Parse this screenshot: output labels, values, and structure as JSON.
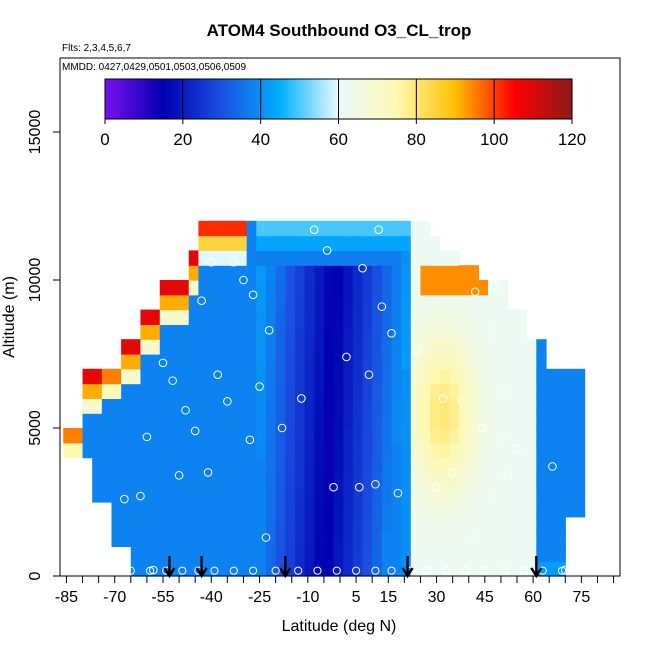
{
  "chart_data": {
    "type": "heatmap",
    "title": "ATOM4 Southbound O3_CL_trop",
    "subtitle_lines": [
      "Flts: 2,3,4,5,6,7",
      "MMDD: 0427,0429,0501,0503,0506,0509"
    ],
    "xlabel": "Latitude (deg N)",
    "ylabel": "Altitude (m)",
    "xlim": [
      -87,
      87
    ],
    "ylim": [
      0,
      17500
    ],
    "x_ticks": [
      -85,
      -70,
      -55,
      -40,
      -25,
      -10,
      5,
      15,
      30,
      45,
      60,
      75
    ],
    "y_ticks": [
      0,
      5000,
      10000,
      15000
    ],
    "x_minor_step": 5,
    "colorbar": {
      "range": [
        0,
        120
      ],
      "ticks": [
        0,
        20,
        40,
        60,
        80,
        100,
        120
      ],
      "colors": [
        "#7a10f0",
        "#0000b0",
        "#1a50e0",
        "#00b0ff",
        "#eafaff",
        "#fff9b0",
        "#ffc000",
        "#ff0000",
        "#8b1a1a"
      ]
    },
    "altitude_bins_m": [
      0,
      500,
      1000,
      1500,
      2000,
      2500,
      3000,
      3500,
      4000,
      4500,
      5000,
      5500,
      6000,
      6500,
      7000,
      7500,
      8000,
      8500,
      9000,
      9500,
      10000,
      10500,
      11000,
      11500,
      12000
    ],
    "latitude_bins_deg": [
      -86,
      -83,
      -80,
      -77,
      -74,
      -71,
      -68,
      -65,
      -62,
      -59,
      -56,
      -53,
      -50,
      -47,
      -44,
      -41,
      -38,
      -35,
      -32,
      -29,
      -26,
      -23,
      -20,
      -17,
      -14,
      -11,
      -8,
      -5,
      -2,
      1,
      4,
      7,
      10,
      13,
      16,
      19,
      22,
      25,
      28,
      31,
      34,
      37,
      40,
      43,
      46,
      49,
      52,
      55,
      58,
      61,
      64,
      67,
      70,
      73
    ],
    "profile_markers": [
      {
        "lat": -70,
        "alt": 300
      },
      {
        "lat": -67,
        "alt": 2600
      },
      {
        "lat": -62,
        "alt": 2700
      },
      {
        "lat": -60,
        "alt": 4700
      },
      {
        "lat": -58,
        "alt": 200
      },
      {
        "lat": -55,
        "alt": 7200
      },
      {
        "lat": -52,
        "alt": 6600
      },
      {
        "lat": -50,
        "alt": 3400
      },
      {
        "lat": -48,
        "alt": 5600
      },
      {
        "lat": -45,
        "alt": 4900
      },
      {
        "lat": -43,
        "alt": 9300
      },
      {
        "lat": -41,
        "alt": 3500
      },
      {
        "lat": -40,
        "alt": 10600
      },
      {
        "lat": -38,
        "alt": 6800
      },
      {
        "lat": -35,
        "alt": 5900
      },
      {
        "lat": -33,
        "alt": 10600
      },
      {
        "lat": -30,
        "alt": 10000
      },
      {
        "lat": -28,
        "alt": 4600
      },
      {
        "lat": -27,
        "alt": 9500
      },
      {
        "lat": -25,
        "alt": 6400
      },
      {
        "lat": -23,
        "alt": 1300
      },
      {
        "lat": -22,
        "alt": 8300
      },
      {
        "lat": -18,
        "alt": 5000
      },
      {
        "lat": -12,
        "alt": 6000
      },
      {
        "lat": -8,
        "alt": 11700
      },
      {
        "lat": -4,
        "alt": 11000
      },
      {
        "lat": -2,
        "alt": 3000
      },
      {
        "lat": 2,
        "alt": 7400
      },
      {
        "lat": 6,
        "alt": 3000
      },
      {
        "lat": 7,
        "alt": 10400
      },
      {
        "lat": 9,
        "alt": 6800
      },
      {
        "lat": 11,
        "alt": 3100
      },
      {
        "lat": 13,
        "alt": 9100
      },
      {
        "lat": 16,
        "alt": 8200
      },
      {
        "lat": 18,
        "alt": 2800
      },
      {
        "lat": 24,
        "alt": 7600
      },
      {
        "lat": 30,
        "alt": 3000
      },
      {
        "lat": 32,
        "alt": 6000
      },
      {
        "lat": 35,
        "alt": 3500
      },
      {
        "lat": 38,
        "alt": 5900
      },
      {
        "lat": 42,
        "alt": 9600
      },
      {
        "lat": 44,
        "alt": 5000
      },
      {
        "lat": 48,
        "alt": 9800
      },
      {
        "lat": 52,
        "alt": 3400
      },
      {
        "lat": 55,
        "alt": 4300
      },
      {
        "lat": 60,
        "alt": 8500
      },
      {
        "lat": 66,
        "alt": 3700
      },
      {
        "lat": 70,
        "alt": 200
      },
      {
        "lat": 12,
        "alt": 11700
      }
    ],
    "arrow_latitudes": [
      -53,
      -43,
      -17,
      21,
      61
    ]
  }
}
